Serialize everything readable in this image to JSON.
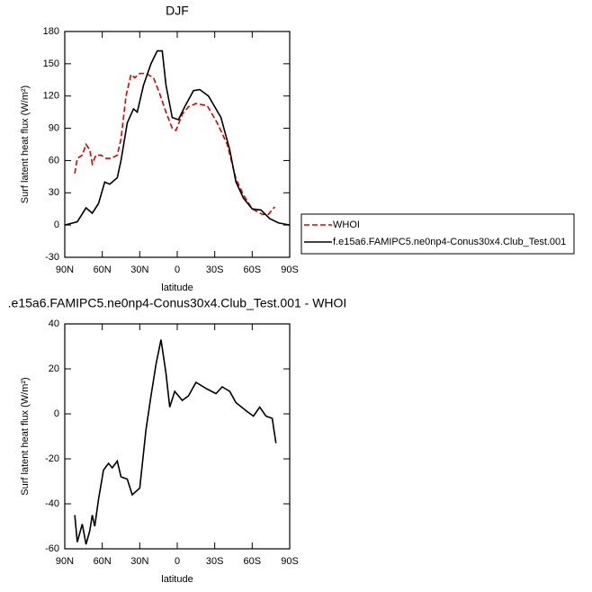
{
  "chart_data": [
    {
      "type": "line",
      "title": "DJF",
      "xlabel": "latitude",
      "ylabel": "Surf latent heat flux (W/m²)",
      "xlim": [
        90,
        -90
      ],
      "xticks": [
        {
          "value": 90,
          "label": "90N"
        },
        {
          "value": 60,
          "label": "60N"
        },
        {
          "value": 30,
          "label": "30N"
        },
        0,
        {
          "value": -30,
          "label": "30S"
        },
        {
          "value": -60,
          "label": "60S"
        },
        {
          "value": -90,
          "label": "90S"
        }
      ],
      "ylim": [
        -30,
        180
      ],
      "yticks": [
        -30,
        0,
        30,
        60,
        90,
        120,
        150,
        180
      ],
      "legend": "right",
      "series": [
        {
          "name": "WHOI",
          "color": "#e00000",
          "dash": "dashed",
          "x": [
            82,
            80,
            76,
            73,
            70,
            68,
            65,
            61,
            57,
            53,
            48,
            45,
            41,
            37,
            34,
            30,
            25,
            19,
            14,
            9,
            4,
            1,
            -4,
            -9,
            -15,
            -24,
            -32,
            -40,
            -47,
            -53,
            -60,
            -68,
            -73,
            -78
          ],
          "values": [
            48,
            62,
            65,
            75,
            70,
            57,
            65,
            65,
            62,
            62,
            65,
            80,
            120,
            140,
            137,
            141,
            141,
            137,
            122,
            105,
            90,
            88,
            103,
            110,
            113,
            111,
            95,
            75,
            43,
            28,
            15,
            10,
            10,
            17
          ]
        },
        {
          "name": "f.e15a6.FAMIPC5.ne0np4-Conus30x4.Club_Test.001",
          "color": "#000000",
          "dash": "solid",
          "x": [
            90,
            80,
            73,
            68,
            63,
            58,
            54,
            48,
            45,
            40,
            35,
            32,
            27,
            21,
            16,
            12,
            9,
            4,
            -1,
            -6,
            -13,
            -18,
            -25,
            -35,
            -42,
            -47,
            -53,
            -60,
            -67,
            -74,
            -81,
            -90
          ],
          "values": [
            0,
            3,
            16,
            11,
            20,
            40,
            38,
            44,
            60,
            95,
            108,
            105,
            130,
            150,
            162,
            162,
            130,
            100,
            98,
            110,
            125,
            126,
            120,
            100,
            70,
            40,
            25,
            15,
            14,
            6,
            2,
            0
          ]
        }
      ]
    },
    {
      "type": "line",
      "title": ".e15a6.FAMIPC5.ne0np4-Conus30x4.Club_Test.001 - WHOI",
      "xlabel": "latitude",
      "ylabel": "Surf latent heat flux (W/m²)",
      "xlim": [
        90,
        -90
      ],
      "xticks": [
        {
          "value": 90,
          "label": "90N"
        },
        {
          "value": 60,
          "label": "60N"
        },
        {
          "value": 30,
          "label": "30N"
        },
        0,
        {
          "value": -30,
          "label": "30S"
        },
        {
          "value": -60,
          "label": "60S"
        },
        {
          "value": -90,
          "label": "90S"
        }
      ],
      "ylim": [
        -60,
        40
      ],
      "yticks": [
        -60,
        -40,
        -20,
        0,
        20,
        40
      ],
      "series": [
        {
          "color": "#000000",
          "dash": "solid",
          "x": [
            82,
            80,
            76,
            73,
            70,
            68,
            66,
            63,
            59,
            55,
            52,
            48,
            45,
            40,
            36,
            30,
            25,
            21,
            17,
            13,
            9,
            6,
            2,
            -4,
            -9,
            -15,
            -24,
            -31,
            -36,
            -42,
            -47,
            -56,
            -61,
            -66,
            -71,
            -76,
            -79
          ],
          "values": [
            -45,
            -57,
            -49,
            -58,
            -52,
            -45,
            -50,
            -38,
            -25,
            -22,
            -24,
            -21,
            -28,
            -29,
            -36,
            -33,
            -7,
            8,
            22,
            33,
            18,
            3,
            10,
            6,
            8,
            14,
            11,
            9,
            12,
            10,
            5,
            1,
            -1,
            3,
            -1,
            -2,
            -13
          ]
        }
      ]
    }
  ]
}
